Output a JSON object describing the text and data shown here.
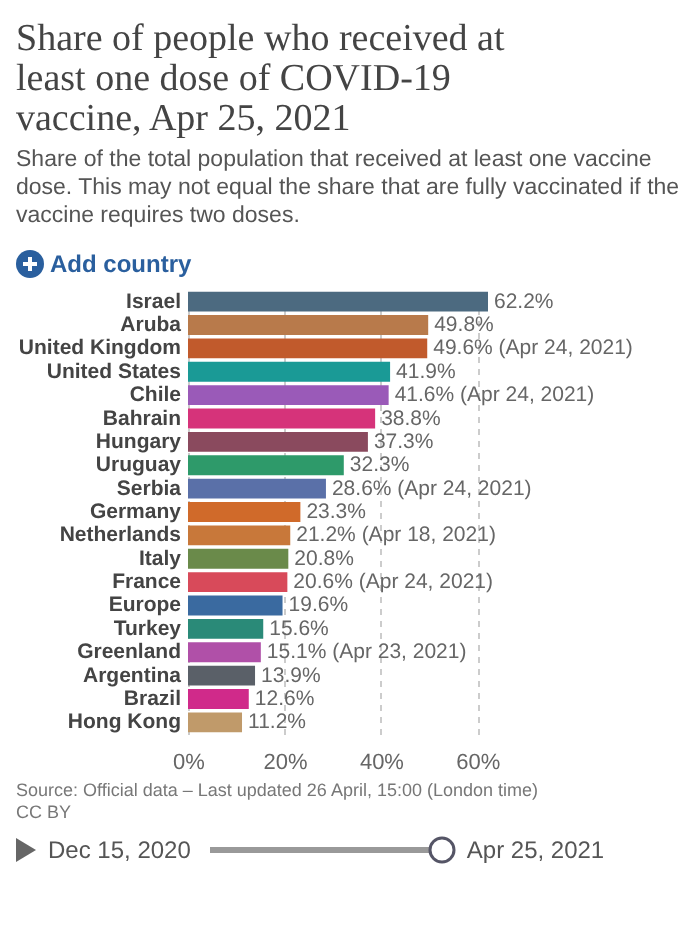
{
  "chart_data": {
    "type": "bar",
    "orientation": "horizontal",
    "title": "Share of people who received at least one dose of COVID-19 vaccine, Apr 25, 2021",
    "subtitle": "Share of the total population that received at least one vaccine dose. This may not equal the share that are fully vaccinated if the vaccine requires two doses.",
    "categories": [
      "Israel",
      "Aruba",
      "United Kingdom",
      "United States",
      "Chile",
      "Bahrain",
      "Hungary",
      "Uruguay",
      "Serbia",
      "Germany",
      "Netherlands",
      "Italy",
      "France",
      "Europe",
      "Turkey",
      "Greenland",
      "Argentina",
      "Brazil",
      "Hong Kong"
    ],
    "values": [
      62.2,
      49.8,
      49.6,
      41.9,
      41.6,
      38.8,
      37.3,
      32.3,
      28.6,
      23.3,
      21.2,
      20.8,
      20.6,
      19.6,
      15.6,
      15.1,
      13.9,
      12.6,
      11.2
    ],
    "value_labels": [
      "62.2%",
      "49.8%",
      "49.6% (Apr 24, 2021)",
      "41.9%",
      "41.6% (Apr 24, 2021)",
      "38.8%",
      "37.3%",
      "32.3%",
      "28.6% (Apr 24, 2021)",
      "23.3%",
      "21.2% (Apr 18, 2021)",
      "20.8%",
      "20.6% (Apr 24, 2021)",
      "19.6%",
      "15.6%",
      "15.1% (Apr 23, 2021)",
      "13.9%",
      "12.6%",
      "11.2%"
    ],
    "colors": [
      "#4c6a80",
      "#b87a4b",
      "#c15a2c",
      "#1a9a96",
      "#9a5ab8",
      "#d6337a",
      "#8a4a5e",
      "#2e9a6a",
      "#5a70a8",
      "#d06a2a",
      "#c8783a",
      "#6a8a4a",
      "#d84a5a",
      "#3a6aa0",
      "#2a8a78",
      "#b050a8",
      "#5a6068",
      "#d02a8a",
      "#c09a6a"
    ],
    "xlim": [
      0,
      62.2
    ],
    "xticks": [
      {
        "value": 0,
        "label": "0%"
      },
      {
        "value": 20,
        "label": "20%"
      },
      {
        "value": 40,
        "label": "40%"
      },
      {
        "value": 60,
        "label": "60%"
      }
    ],
    "grid": "x",
    "annotations": [
      "Add country",
      "Source: Official data – Last updated 26 April, 15:00 (London time)",
      "CC BY",
      "Dec 15, 2020",
      "Apr 25, 2021"
    ]
  }
}
